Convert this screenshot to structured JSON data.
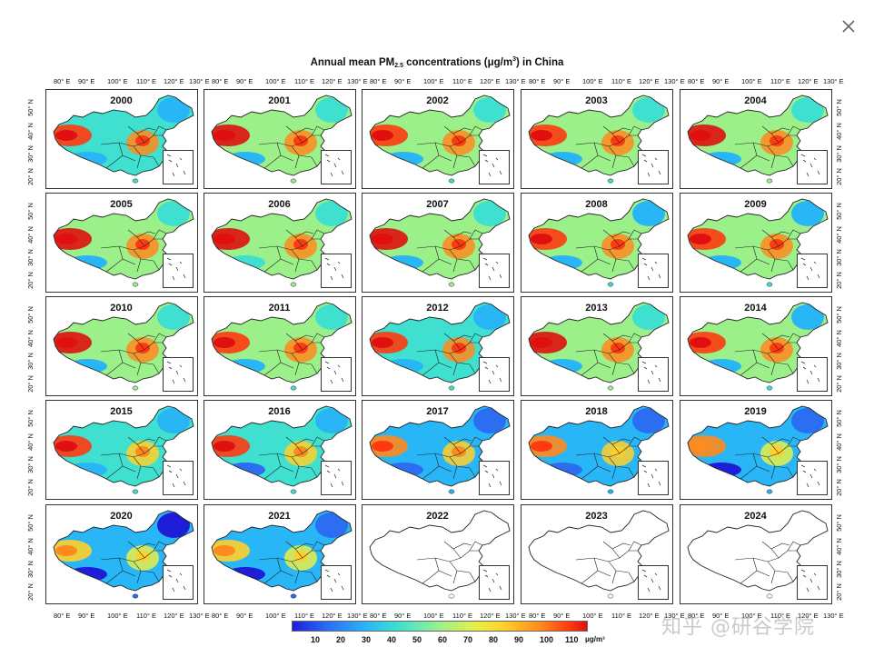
{
  "dialog": {
    "close_icon": "close-icon"
  },
  "figure": {
    "title_main": "Annual mean PM",
    "title_sub": "2.5",
    "title_mid": " concentrations (μg/m",
    "title_sup": "3",
    "title_end": ") in China"
  },
  "axes": {
    "lon_labels": [
      "80° E",
      "90° E",
      "100° E",
      "110° E",
      "120° E",
      "130° E"
    ],
    "lat_labels": [
      "20° N",
      "30° N",
      "40° N",
      "50° N"
    ]
  },
  "panels": [
    {
      "year": "2000",
      "level": 0.55,
      "empty": false
    },
    {
      "year": "2001",
      "level": 0.6,
      "empty": false
    },
    {
      "year": "2002",
      "level": 0.58,
      "empty": false
    },
    {
      "year": "2003",
      "level": 0.58,
      "empty": false
    },
    {
      "year": "2004",
      "level": 0.6,
      "empty": false
    },
    {
      "year": "2005",
      "level": 0.6,
      "empty": false
    },
    {
      "year": "2006",
      "level": 0.63,
      "empty": false
    },
    {
      "year": "2007",
      "level": 0.6,
      "empty": false
    },
    {
      "year": "2008",
      "level": 0.57,
      "empty": false
    },
    {
      "year": "2009",
      "level": 0.57,
      "empty": false
    },
    {
      "year": "2010",
      "level": 0.6,
      "empty": false
    },
    {
      "year": "2011",
      "level": 0.58,
      "empty": false
    },
    {
      "year": "2012",
      "level": 0.56,
      "empty": false
    },
    {
      "year": "2013",
      "level": 0.62,
      "empty": false
    },
    {
      "year": "2014",
      "level": 0.57,
      "empty": false
    },
    {
      "year": "2015",
      "level": 0.52,
      "empty": false
    },
    {
      "year": "2016",
      "level": 0.5,
      "empty": false
    },
    {
      "year": "2017",
      "level": 0.45,
      "empty": false
    },
    {
      "year": "2018",
      "level": 0.42,
      "empty": false
    },
    {
      "year": "2019",
      "level": 0.38,
      "empty": false
    },
    {
      "year": "2020",
      "level": 0.35,
      "empty": false
    },
    {
      "year": "2021",
      "level": 0.36,
      "empty": false
    },
    {
      "year": "2022",
      "level": 0,
      "empty": true
    },
    {
      "year": "2023",
      "level": 0,
      "empty": true
    },
    {
      "year": "2024",
      "level": 0,
      "empty": true
    }
  ],
  "colorbar": {
    "ticks": [
      "10",
      "20",
      "30",
      "40",
      "50",
      "60",
      "70",
      "80",
      "90",
      "100",
      "110"
    ],
    "unit": "μg/m³",
    "colors": [
      "#1e1ed8",
      "#2b6ef2",
      "#29b6f6",
      "#3fe0d0",
      "#9cf08a",
      "#e6f04a",
      "#ffd02b",
      "#ff8a1e",
      "#ff3a10",
      "#e01010"
    ]
  },
  "watermark": "知乎 @研谷学院"
}
